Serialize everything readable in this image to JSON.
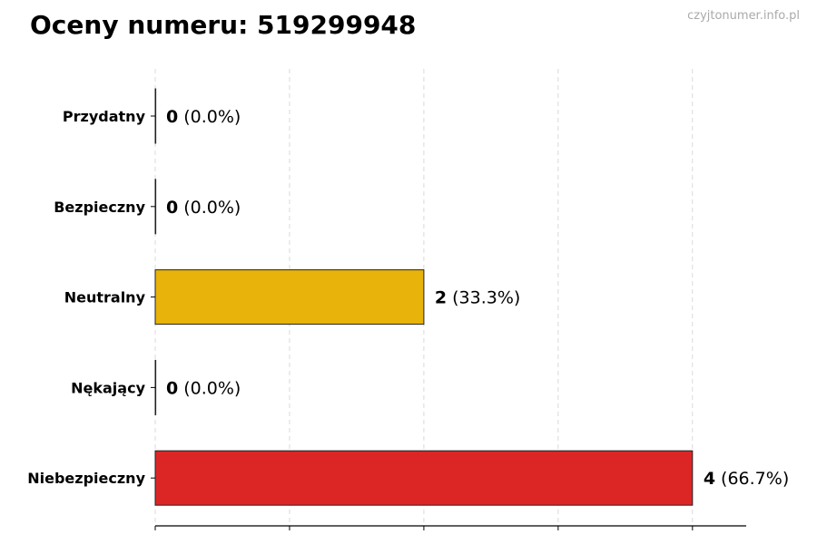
{
  "title": "Oceny numeru: 519299948",
  "watermark": "czyjtonumer.info.pl",
  "chart_data": {
    "type": "bar",
    "orientation": "horizontal",
    "title": "Oceny numeru: 519299948",
    "categories": [
      "Przydatny",
      "Bezpieczny",
      "Neutralny",
      "Nękający",
      "Niebezpieczny"
    ],
    "values": [
      0,
      0,
      2,
      0,
      4
    ],
    "percent_labels": [
      "(0.0%)",
      "(0.0%)",
      "(33.3%)",
      "(0.0%)",
      "(66.7%)"
    ],
    "colors": [
      "#2ca02c",
      "#1f77b4",
      "#e8b30a",
      "#ff7f0e",
      "#dc2626"
    ],
    "xlim": [
      0,
      4.4
    ],
    "xticks": [
      0,
      1,
      2,
      3,
      4
    ],
    "xtick_labels_shown": false,
    "grid": "vertical dashed",
    "xlabel": "",
    "ylabel": ""
  }
}
